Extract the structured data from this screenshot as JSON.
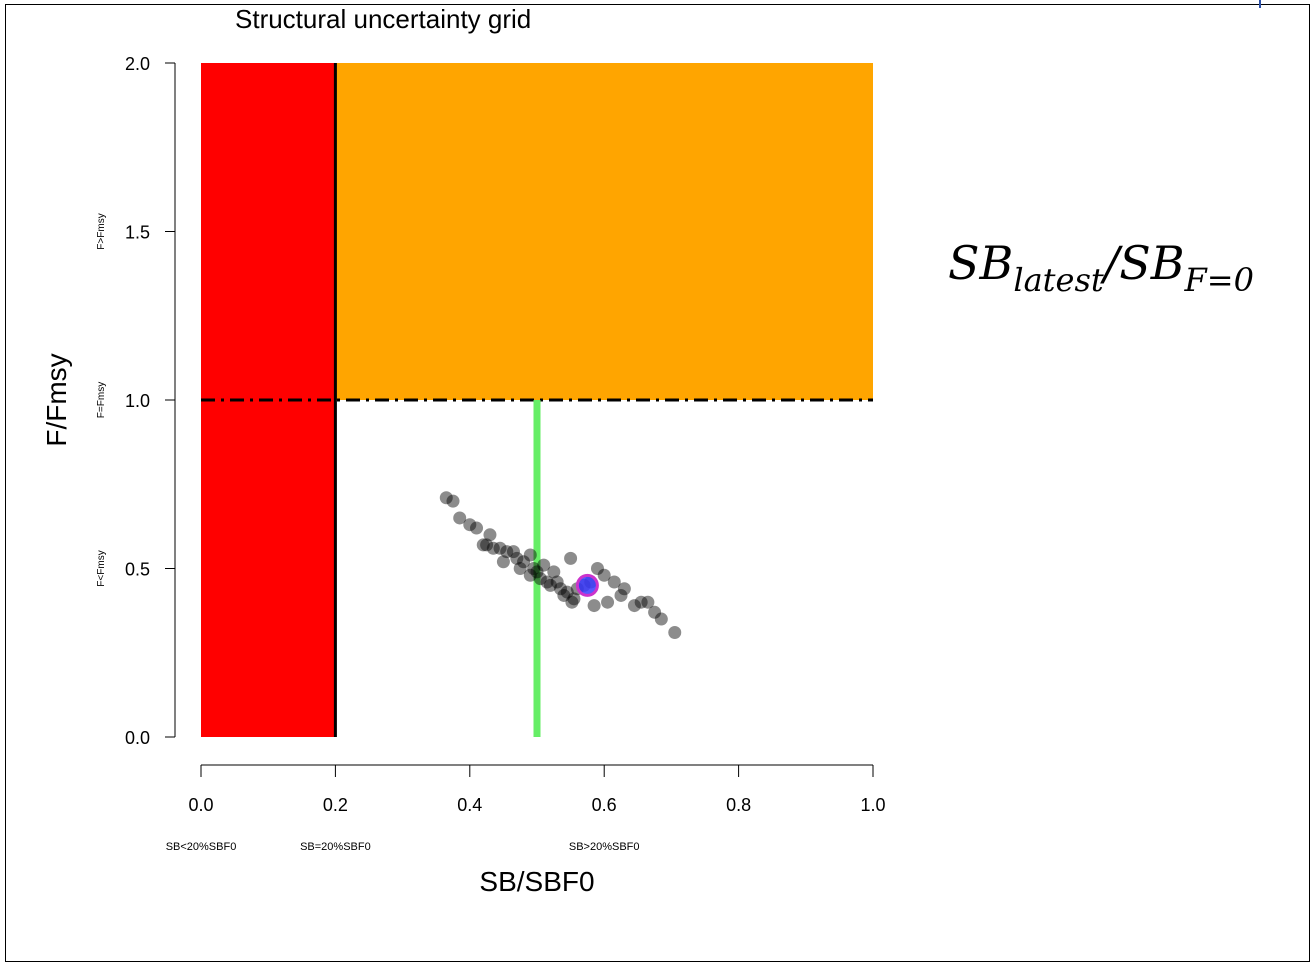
{
  "title": "Structural uncertainty grid",
  "formula": {
    "main": "SB",
    "sub1": "latest",
    "slash": "/",
    "main2": "SB",
    "sub2": "F=0"
  },
  "colors": {
    "red_zone": "#ff0000",
    "orange_zone": "#ffa500",
    "green_line": "#66ee66",
    "points": "#000000",
    "highlight_fill": "#3b3bff",
    "highlight_ring": "#cc33cc"
  },
  "chart_data": {
    "type": "scatter",
    "title": "Structural uncertainty grid",
    "xlabel": "SB/SBF0",
    "ylabel": "F/Fmsy",
    "xlim": [
      0,
      1
    ],
    "ylim": [
      0,
      2
    ],
    "x_ticks": [
      "0.0",
      "0.2",
      "0.4",
      "0.6",
      "0.8",
      "1.0"
    ],
    "y_ticks": [
      "0.0",
      "0.5",
      "1.0",
      "1.5",
      "2.0"
    ],
    "x_zone_labels": [
      {
        "x": 0.0,
        "text": "SB<20%SBF0"
      },
      {
        "x": 0.2,
        "text": "SB=20%SBF0"
      },
      {
        "x": 0.6,
        "text": "SB>20%SBF0"
      }
    ],
    "y_zone_labels": [
      {
        "y": 1.5,
        "text": "F>Fmsy"
      },
      {
        "y": 1.0,
        "text": "F=Fmsy"
      },
      {
        "y": 0.5,
        "text": "F<Fmsy"
      }
    ],
    "regions": [
      {
        "name": "red",
        "x": [
          0,
          0.2
        ],
        "y": [
          0,
          2
        ]
      },
      {
        "name": "orange",
        "x": [
          0.2,
          1.0
        ],
        "y": [
          1,
          2
        ]
      }
    ],
    "reference_lines": [
      {
        "type": "vertical",
        "x": 0.2,
        "y": [
          0,
          2
        ],
        "style": "solid",
        "color": "#000000"
      },
      {
        "type": "horizontal",
        "y": 1.0,
        "x": [
          0,
          1.0
        ],
        "style": "dashdot",
        "color": "#000000"
      },
      {
        "type": "vertical",
        "x": 0.5,
        "y": [
          0,
          1
        ],
        "style": "solid",
        "color": "#66ee66"
      }
    ],
    "points": [
      [
        0.365,
        0.71
      ],
      [
        0.375,
        0.7
      ],
      [
        0.385,
        0.65
      ],
      [
        0.4,
        0.63
      ],
      [
        0.41,
        0.62
      ],
      [
        0.42,
        0.57
      ],
      [
        0.425,
        0.57
      ],
      [
        0.43,
        0.6
      ],
      [
        0.435,
        0.56
      ],
      [
        0.445,
        0.56
      ],
      [
        0.45,
        0.52
      ],
      [
        0.455,
        0.55
      ],
      [
        0.465,
        0.55
      ],
      [
        0.47,
        0.53
      ],
      [
        0.475,
        0.5
      ],
      [
        0.48,
        0.52
      ],
      [
        0.49,
        0.54
      ],
      [
        0.49,
        0.48
      ],
      [
        0.495,
        0.5
      ],
      [
        0.5,
        0.49
      ],
      [
        0.505,
        0.47
      ],
      [
        0.51,
        0.51
      ],
      [
        0.515,
        0.46
      ],
      [
        0.52,
        0.45
      ],
      [
        0.525,
        0.49
      ],
      [
        0.53,
        0.46
      ],
      [
        0.535,
        0.44
      ],
      [
        0.54,
        0.42
      ],
      [
        0.545,
        0.43
      ],
      [
        0.55,
        0.53
      ],
      [
        0.552,
        0.4
      ],
      [
        0.555,
        0.41
      ],
      [
        0.56,
        0.44
      ],
      [
        0.57,
        0.45
      ],
      [
        0.58,
        0.46
      ],
      [
        0.585,
        0.39
      ],
      [
        0.59,
        0.5
      ],
      [
        0.6,
        0.48
      ],
      [
        0.605,
        0.4
      ],
      [
        0.615,
        0.46
      ],
      [
        0.625,
        0.42
      ],
      [
        0.63,
        0.44
      ],
      [
        0.645,
        0.39
      ],
      [
        0.655,
        0.4
      ],
      [
        0.665,
        0.4
      ],
      [
        0.675,
        0.37
      ],
      [
        0.685,
        0.35
      ],
      [
        0.705,
        0.31
      ]
    ],
    "highlight_point": [
      0.575,
      0.45
    ],
    "grid": false
  }
}
